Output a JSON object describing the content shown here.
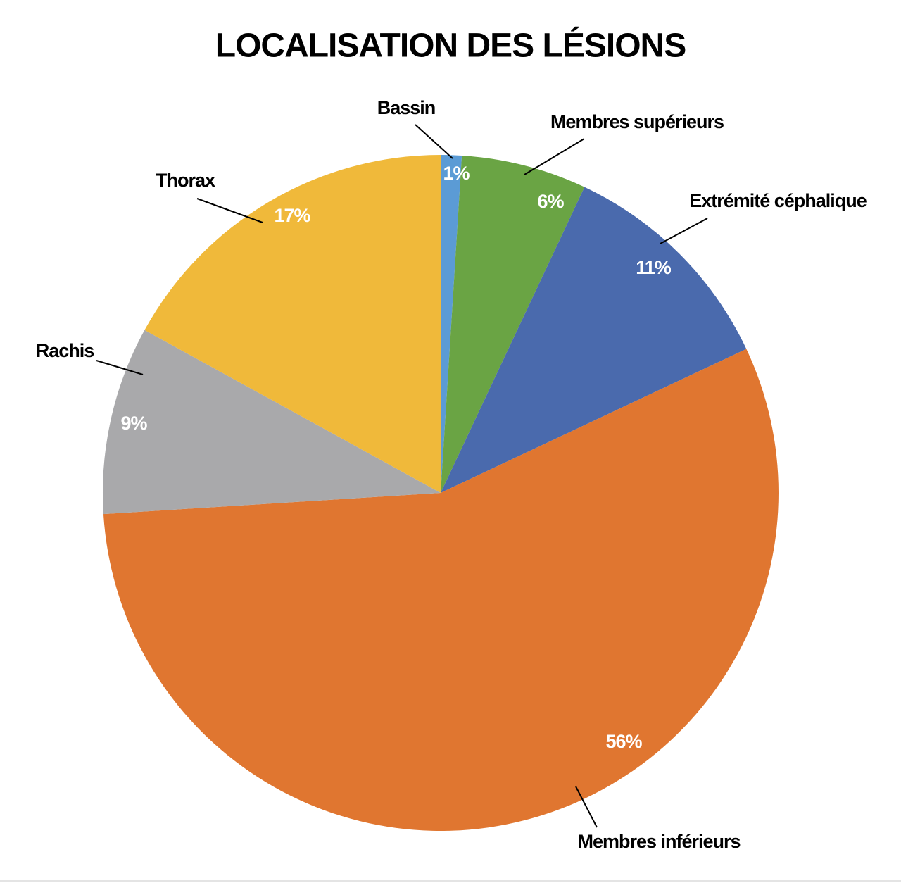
{
  "chart_data": {
    "type": "pie",
    "title": "LOCALISATION DES LÉSIONS",
    "categories": [
      "Bassin",
      "Membres supérieurs",
      "Extrémité céphalique",
      "Membres inférieurs",
      "Rachis",
      "Thorax"
    ],
    "values": [
      1,
      6,
      11,
      56,
      9,
      17
    ],
    "value_labels": [
      "1%",
      "6%",
      "11%",
      "56%",
      "9%",
      "17%"
    ],
    "colors": [
      "#5b9bd5",
      "#6aa444",
      "#4a6aad",
      "#e07630",
      "#a9a9ab",
      "#f0b93a"
    ]
  }
}
